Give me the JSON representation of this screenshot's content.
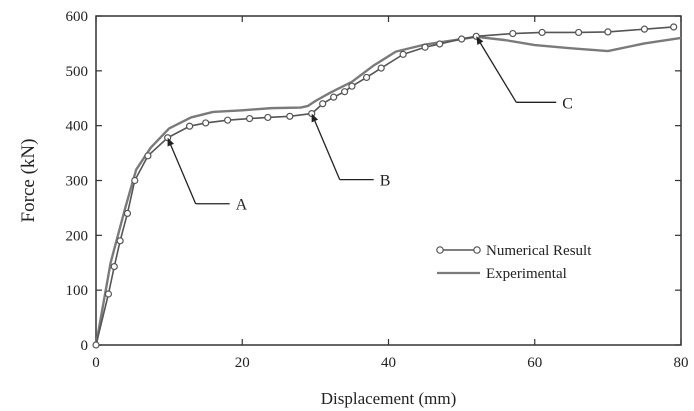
{
  "chart_data": {
    "type": "line",
    "xlabel": "Displacement (mm)",
    "ylabel": "Force (kN)",
    "xlim": [
      0,
      80
    ],
    "ylim": [
      0,
      600
    ],
    "xticks": [
      0,
      20,
      40,
      60,
      80
    ],
    "yticks": [
      0,
      100,
      200,
      300,
      400,
      500,
      600
    ],
    "grid": false,
    "legend_position": "lower-right",
    "series": [
      {
        "name": "Numerical Result",
        "style": "line-with-circle-markers",
        "color": "#555555",
        "x": [
          0,
          1.7,
          2.5,
          3.3,
          4.3,
          5.3,
          7.1,
          9.8,
          12.8,
          15,
          18,
          21,
          23.5,
          26.5,
          29.5,
          31,
          32.5,
          34,
          35,
          37,
          39,
          42,
          45,
          47,
          50,
          52,
          57,
          61,
          66,
          70,
          75,
          79
        ],
        "y": [
          0,
          93,
          143,
          190,
          240,
          300,
          345,
          378,
          399,
          405,
          410,
          413,
          415,
          417,
          422,
          440,
          452,
          462,
          472,
          488,
          505,
          530,
          543,
          549,
          558,
          563,
          568,
          570,
          570,
          571,
          576,
          580
        ]
      },
      {
        "name": "Experimental",
        "style": "line",
        "color": "#7a7a7a",
        "x": [
          0,
          2,
          4,
          5.5,
          7.5,
          10,
          13,
          16,
          20,
          24,
          28,
          29,
          30,
          32,
          35,
          38,
          41,
          45,
          50,
          52,
          56,
          60,
          65,
          70,
          75,
          80
        ],
        "y": [
          0,
          150,
          250,
          320,
          360,
          395,
          415,
          425,
          428,
          432,
          433,
          436,
          445,
          460,
          480,
          510,
          535,
          548,
          558,
          562,
          556,
          547,
          541,
          536,
          550,
          560
        ]
      }
    ],
    "annotations": [
      {
        "label": "A",
        "x": 9.8,
        "y": 378
      },
      {
        "label": "B",
        "x": 29.5,
        "y": 422
      },
      {
        "label": "C",
        "x": 52,
        "y": 563
      }
    ]
  }
}
